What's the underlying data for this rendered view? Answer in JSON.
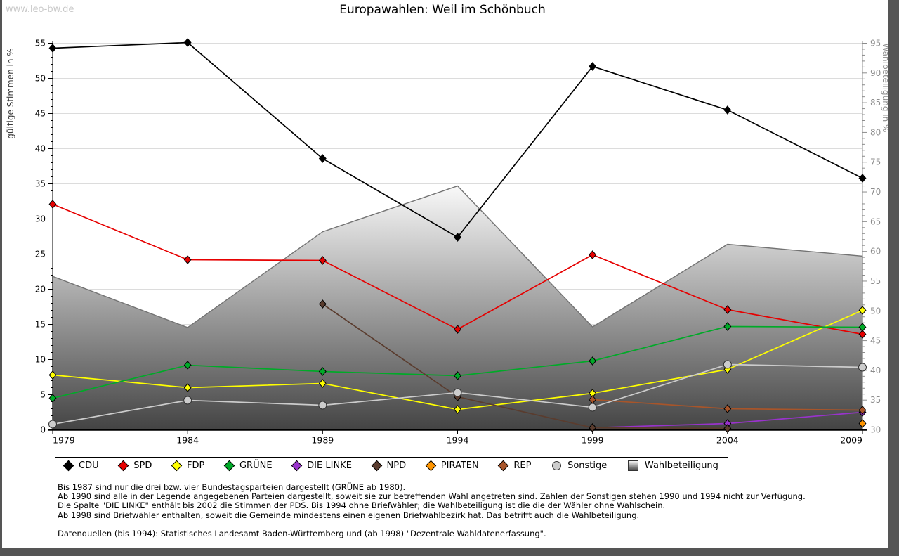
{
  "watermark": "www.leo-bw.de",
  "title": "Europawahlen: Weil im Schönbuch",
  "chart_data": {
    "type": "line",
    "x": [
      1979,
      1984,
      1989,
      1994,
      1999,
      2004,
      2009
    ],
    "ylabel_left": "gültige Stimmen in %",
    "ylabel_right": "Wahlbeteiligung in %",
    "ylim_left": [
      0,
      55
    ],
    "ylim_right": [
      30,
      95
    ],
    "grid": true,
    "legend_position": "bottom",
    "series": [
      {
        "name": "CDU",
        "color": "#000000",
        "marker": "diamond",
        "values": [
          54.3,
          55.1,
          38.6,
          27.4,
          51.7,
          45.5,
          35.8
        ]
      },
      {
        "name": "SPD",
        "color": "#e60000",
        "marker": "diamond",
        "values": [
          32.1,
          24.2,
          24.1,
          14.3,
          24.9,
          17.1,
          13.6
        ]
      },
      {
        "name": "FDP",
        "color": "#ffff00",
        "marker": "diamond",
        "values": [
          7.8,
          6.0,
          6.6,
          2.9,
          5.2,
          8.6,
          17.0
        ]
      },
      {
        "name": "GRÜNE",
        "color": "#00aa28",
        "marker": "diamond",
        "values": [
          4.5,
          9.2,
          8.3,
          7.7,
          9.8,
          14.7,
          14.6
        ]
      },
      {
        "name": "DIE LINKE",
        "color": "#9933cc",
        "marker": "diamond",
        "values": [
          null,
          null,
          null,
          null,
          0.3,
          0.9,
          2.5
        ]
      },
      {
        "name": "NPD",
        "color": "#5a3c2e",
        "marker": "diamond",
        "values": [
          null,
          null,
          17.9,
          4.7,
          0.3,
          0.2,
          null
        ]
      },
      {
        "name": "PIRATEN",
        "color": "#ff9500",
        "marker": "diamond",
        "values": [
          null,
          null,
          null,
          null,
          null,
          null,
          0.9
        ]
      },
      {
        "name": "REP",
        "color": "#a8552a",
        "marker": "diamond",
        "values": [
          null,
          null,
          null,
          null,
          4.3,
          3.0,
          2.8
        ]
      },
      {
        "name": "Sonstige",
        "color": "#cccccc",
        "marker": "circle",
        "values": [
          0.8,
          4.2,
          3.5,
          5.3,
          3.2,
          9.3,
          8.9
        ]
      }
    ],
    "area_series": {
      "name": "Wahlbeteiligung",
      "axis": "right",
      "values": [
        55.8,
        47.2,
        63.3,
        71.0,
        47.3,
        61.2,
        59.2
      ],
      "fill_top": "#f9f9f9",
      "fill_bottom": "#444444",
      "stroke": "#737373"
    }
  },
  "footnotes": [
    "Bis 1987 sind nur die drei bzw. vier Bundestagsparteien dargestellt (GRÜNE ab 1980).",
    "Ab 1990 sind alle in der Legende angegebenen Parteien dargestellt, soweit sie zur betreffenden Wahl angetreten sind. Zahlen der Sonstigen stehen 1990 und 1994 nicht zur Verfügung.",
    "Die Spalte \"DIE LINKE\" enthält bis 2002 die Stimmen der PDS. Bis 1994 ohne Briefwähler; die Wahlbeteiligung ist die die der Wähler ohne Wahlschein.",
    "Ab 1998 sind Briefwähler enthalten, soweit die Gemeinde mindestens einen eigenen Briefwahlbezirk hat. Das betrifft auch die Wahlbeteiligung."
  ],
  "source": "Datenquellen (bis 1994): Statistisches Landesamt Baden-Württemberg und (ab 1998) \"Dezentrale Wahldatenerfassung\"."
}
